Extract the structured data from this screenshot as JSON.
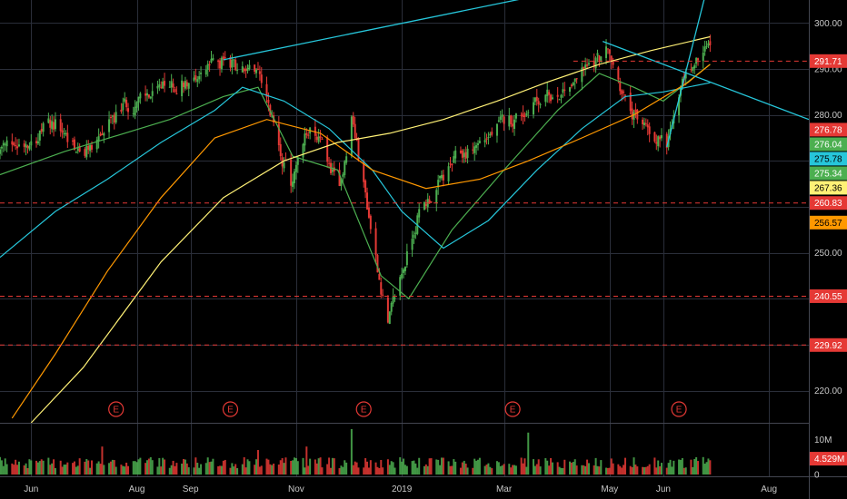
{
  "chart_data": {
    "type": "candlestick",
    "price_axis": {
      "ylim": [
        213,
        305
      ],
      "ticks": [
        "300.00",
        "290.00",
        "280.00",
        "250.00",
        "220.00"
      ]
    },
    "time_axis": {
      "labels": [
        {
          "label": "Jun",
          "date": "2018-06-01"
        },
        {
          "label": "Aug",
          "date": "2018-08-01"
        },
        {
          "label": "Sep",
          "date": "2018-09-01"
        },
        {
          "label": "Nov",
          "date": "2018-11-01"
        },
        {
          "label": "2019",
          "date": "2019-01-01"
        },
        {
          "label": "Mar",
          "date": "2019-03-01"
        },
        {
          "label": "May",
          "date": "2019-05-01"
        },
        {
          "label": "Jun",
          "date": "2019-06-01"
        },
        {
          "label": "Aug",
          "date": "2019-08-01"
        }
      ],
      "range": [
        "2018-05-14",
        "2019-08-24"
      ]
    },
    "price_path": [
      [
        "2018-05-14",
        272
      ],
      [
        "2018-06-15",
        278
      ],
      [
        "2018-07-01",
        271
      ],
      [
        "2018-07-25",
        282
      ],
      [
        "2018-08-15",
        285
      ],
      [
        "2018-09-20",
        292
      ],
      [
        "2018-10-10",
        288
      ],
      [
        "2018-10-29",
        265
      ],
      [
        "2018-11-10",
        279
      ],
      [
        "2018-11-26",
        263
      ],
      [
        "2018-12-03",
        280
      ],
      [
        "2018-12-24",
        234
      ],
      [
        "2019-01-10",
        258
      ],
      [
        "2019-02-01",
        270
      ],
      [
        "2019-03-01",
        278
      ],
      [
        "2019-04-01",
        285
      ],
      [
        "2019-04-29",
        294
      ],
      [
        "2019-05-13",
        280
      ],
      [
        "2019-06-03",
        274
      ],
      [
        "2019-06-14",
        289
      ],
      [
        "2019-06-28",
        295
      ]
    ],
    "price_lines": [
      {
        "label": "291.71",
        "price": 291.71,
        "color": "#e53935"
      },
      {
        "label": "260.83",
        "price": 260.83,
        "color": "#e53935"
      },
      {
        "label": "240.55",
        "price": 240.55,
        "color": "#e53935"
      },
      {
        "label": "229.92",
        "price": 229.92,
        "color": "#e53935"
      }
    ],
    "price_badges": [
      {
        "label": "276.78",
        "price": 276.78,
        "bg": "#e53935",
        "fg": "#ffffff"
      },
      {
        "label": "276.04",
        "price": 276.04,
        "bg": "#4caf50",
        "fg": "#ffffff"
      },
      {
        "label": "275.78",
        "price": 275.78,
        "bg": "#26c6da",
        "fg": "#000000"
      },
      {
        "label": "275.34",
        "price": 275.34,
        "bg": "#4caf50",
        "fg": "#ffffff"
      },
      {
        "label": "267.36",
        "price": 267.36,
        "bg": "#fff176",
        "fg": "#000000"
      },
      {
        "label": "256.57",
        "price": 256.57,
        "bg": "#ff9800",
        "fg": "#000000"
      }
    ],
    "moving_averages": [
      {
        "name": "ma-fast",
        "color": "#4caf50",
        "points": [
          [
            "2018-05-14",
            267
          ],
          [
            "2018-06-20",
            272
          ],
          [
            "2018-08-20",
            279
          ],
          [
            "2018-09-20",
            284
          ],
          [
            "2018-10-10",
            286
          ],
          [
            "2018-10-30",
            271
          ],
          [
            "2018-11-25",
            268
          ],
          [
            "2018-12-20",
            245
          ],
          [
            "2019-01-05",
            240
          ],
          [
            "2019-01-30",
            255
          ],
          [
            "2019-03-01",
            268
          ],
          [
            "2019-04-01",
            281
          ],
          [
            "2019-04-25",
            289
          ],
          [
            "2019-05-15",
            286
          ],
          [
            "2019-06-01",
            283
          ],
          [
            "2019-06-28",
            291
          ]
        ]
      },
      {
        "name": "ma-50",
        "color": "#26c6da",
        "points": [
          [
            "2018-05-14",
            249
          ],
          [
            "2018-06-15",
            259
          ],
          [
            "2018-07-15",
            266
          ],
          [
            "2018-08-15",
            274
          ],
          [
            "2018-09-15",
            281
          ],
          [
            "2018-10-01",
            286
          ],
          [
            "2018-10-25",
            283
          ],
          [
            "2018-11-20",
            277
          ],
          [
            "2018-12-15",
            268
          ],
          [
            "2019-01-01",
            259
          ],
          [
            "2019-01-25",
            251
          ],
          [
            "2019-02-20",
            257
          ],
          [
            "2019-03-20",
            268
          ],
          [
            "2019-04-15",
            277
          ],
          [
            "2019-05-10",
            284
          ],
          [
            "2019-06-01",
            285
          ],
          [
            "2019-06-28",
            287
          ]
        ]
      },
      {
        "name": "ma-100",
        "color": "#ff9800",
        "points": [
          [
            "2018-05-21",
            214
          ],
          [
            "2018-06-15",
            228
          ],
          [
            "2018-07-15",
            246
          ],
          [
            "2018-08-15",
            262
          ],
          [
            "2018-09-15",
            275
          ],
          [
            "2018-10-15",
            279
          ],
          [
            "2018-11-15",
            276
          ],
          [
            "2018-12-15",
            268
          ],
          [
            "2019-01-15",
            264
          ],
          [
            "2019-02-15",
            266
          ],
          [
            "2019-03-15",
            270
          ],
          [
            "2019-04-15",
            275
          ],
          [
            "2019-05-15",
            280
          ],
          [
            "2019-06-15",
            287
          ],
          [
            "2019-06-28",
            291
          ]
        ]
      },
      {
        "name": "ma-200",
        "color": "#fff176",
        "points": [
          [
            "2018-06-01",
            213
          ],
          [
            "2018-07-01",
            225
          ],
          [
            "2018-08-15",
            248
          ],
          [
            "2018-09-20",
            262
          ],
          [
            "2018-10-25",
            270
          ],
          [
            "2018-11-25",
            274
          ],
          [
            "2018-12-25",
            276
          ],
          [
            "2019-01-25",
            279
          ],
          [
            "2019-02-25",
            283
          ],
          [
            "2019-03-25",
            287
          ],
          [
            "2019-04-25",
            291
          ],
          [
            "2019-05-25",
            294
          ],
          [
            "2019-06-28",
            297
          ]
        ]
      }
    ],
    "trendlines": [
      {
        "name": "resistance-trendline",
        "color": "#26c6da",
        "from": [
          "2018-09-20",
          292
        ],
        "to": [
          "2019-08-24",
          318
        ]
      },
      {
        "name": "descending-trendline",
        "color": "#26c6da",
        "from": [
          "2019-04-27",
          296
        ],
        "to": [
          "2019-08-24",
          279
        ]
      },
      {
        "name": "breakout-trendline",
        "color": "#26c6da",
        "from": [
          "2019-06-03",
          273
        ],
        "to": [
          "2019-07-22",
          346
        ]
      }
    ],
    "earnings_markers": {
      "label": "E",
      "dates": [
        "2018-07-20",
        "2018-09-24",
        "2018-12-10",
        "2019-03-06",
        "2019-06-10"
      ]
    },
    "volume": {
      "ticks": [
        "10M",
        "0"
      ],
      "ylim": [
        0,
        13.5
      ],
      "badge": {
        "label": "4.529M",
        "value": 4.529,
        "bg": "#e53935",
        "fg": "#ffffff"
      },
      "spikes": [
        [
          "2018-12-03",
          13
        ],
        [
          "2019-03-15",
          12
        ],
        [
          "2018-07-12",
          8
        ],
        [
          "2018-11-07",
          8
        ],
        [
          "2018-10-10",
          7
        ]
      ]
    },
    "colors": {
      "up": "#4caf50",
      "down": "#e53935",
      "grid": "#2a2e39",
      "background": "#000000"
    }
  }
}
